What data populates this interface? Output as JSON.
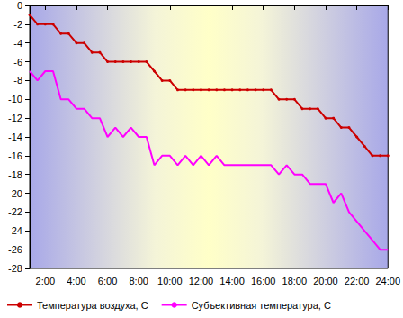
{
  "chart_data": {
    "type": "line",
    "x": [
      1,
      1.5,
      2,
      2.5,
      3,
      3.5,
      4,
      4.5,
      5,
      5.5,
      6,
      6.5,
      7,
      7.5,
      8,
      8.5,
      9,
      9.5,
      10,
      10.5,
      11,
      11.5,
      12,
      12.5,
      13,
      13.5,
      14,
      14.5,
      15,
      15.5,
      16,
      16.5,
      17,
      17.5,
      18,
      18.5,
      19,
      19.5,
      20,
      20.5,
      21,
      21.5,
      22,
      22.5,
      23,
      23.5,
      24
    ],
    "series": [
      {
        "name": "Температура воздуха, С",
        "color": "#cc0000",
        "marker": "circle",
        "values": [
          -1,
          -2,
          -2,
          -2,
          -3,
          -3,
          -4,
          -4,
          -5,
          -5,
          -6,
          -6,
          -6,
          -6,
          -6,
          -6,
          -7,
          -8,
          -8,
          -9,
          -9,
          -9,
          -9,
          -9,
          -9,
          -9,
          -9,
          -9,
          -9,
          -9,
          -9,
          -9,
          -10,
          -10,
          -10,
          -11,
          -11,
          -11,
          -12,
          -12,
          -13,
          -13,
          -14,
          -15,
          -16,
          -16,
          -16
        ]
      },
      {
        "name": "Субъективная температура, С",
        "color": "#ff00ff",
        "marker": "none",
        "values": [
          -7,
          -8,
          -7,
          -7,
          -10,
          -10,
          -11,
          -11,
          -12,
          -12,
          -14,
          -13,
          -14,
          -13,
          -14,
          -14,
          -17,
          -16,
          -16,
          -17,
          -16,
          -17,
          -16,
          -17,
          -16,
          -17,
          -17,
          -17,
          -17,
          -17,
          -17,
          -17,
          -18,
          -17,
          -18,
          -18,
          -19,
          -19,
          -19,
          -21,
          -20,
          -22,
          -23,
          -24,
          -25,
          -26,
          -26
        ]
      }
    ],
    "xlim": [
      1,
      24
    ],
    "xticks": [
      {
        "value": 2,
        "label": "2:00"
      },
      {
        "value": 4,
        "label": "4:00"
      },
      {
        "value": 6,
        "label": "6:00"
      },
      {
        "value": 8,
        "label": "8:00"
      },
      {
        "value": 10,
        "label": "10:00"
      },
      {
        "value": 12,
        "label": "12:00"
      },
      {
        "value": 14,
        "label": "14:00"
      },
      {
        "value": 16,
        "label": "16:00"
      },
      {
        "value": 18,
        "label": "18:00"
      },
      {
        "value": 20,
        "label": "20:00"
      },
      {
        "value": 22,
        "label": "22:00"
      },
      {
        "value": 24,
        "label": "24:00"
      }
    ],
    "ylim": [
      -28,
      0
    ],
    "yticks": [
      -28,
      -26,
      -24,
      -22,
      -20,
      -18,
      -16,
      -14,
      -12,
      -10,
      -8,
      -6,
      -4,
      -2,
      0
    ],
    "grid": false,
    "legend": "bottom"
  }
}
